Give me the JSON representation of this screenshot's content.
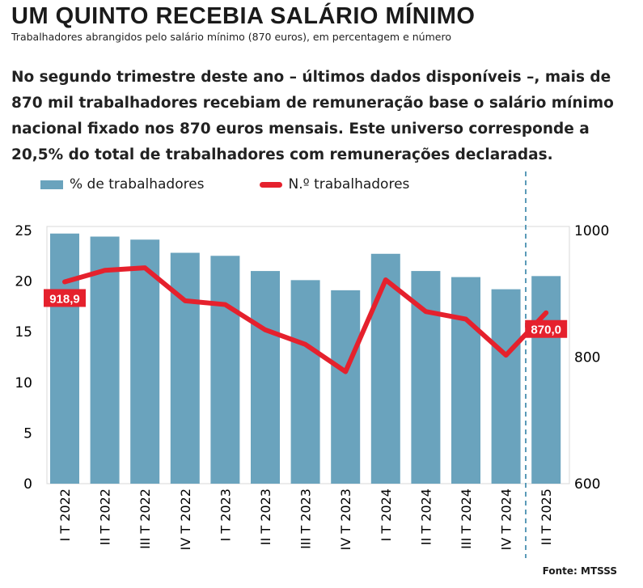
{
  "title": "UM QUINTO RECEBIA SALÁRIO MÍNIMO",
  "subtitle": "Trabalhadores abrangidos pelo salário mínimo (870 euros), em percentagem e número",
  "intro": "No segundo trimestre deste ano – últimos dados disponíveis –, mais de 870 mil trabalhadores recebiam de remuneração base o salário mínimo nacional fixado nos 870 euros mensais. Este universo corresponde a 20,5% do total de  trabalhadores com remunerações declaradas.",
  "source": "Fonte: MTSSS",
  "colors": {
    "bar": "#6aa3bd",
    "line": "#e5212d"
  },
  "chart_data": {
    "type": "bar+line",
    "categories": [
      "I T 2022",
      "II T 2022",
      "III T 2022",
      "IV T 2022",
      "I T 2023",
      "II T 2023",
      "III T 2023",
      "IV T 2023",
      "I T 2024",
      "II T 2024",
      "III T 2024",
      "IV T 2024",
      "II T 2025"
    ],
    "series": [
      {
        "name": "% de trabalhadores",
        "type": "bar",
        "axis": "left",
        "values": [
          24.7,
          24.4,
          24.1,
          22.8,
          22.5,
          21.0,
          20.1,
          19.1,
          22.7,
          21.0,
          20.4,
          19.2,
          20.5
        ]
      },
      {
        "name": "N.º trabalhadores",
        "type": "line",
        "axis": "right",
        "values": [
          918.9,
          937,
          941,
          889,
          883,
          843,
          820,
          777,
          922,
          872,
          860,
          803,
          870.0
        ]
      }
    ],
    "data_labels": [
      {
        "index": 0,
        "text": "918,9"
      },
      {
        "index": 12,
        "text": "870,0"
      }
    ],
    "left_axis": {
      "ylim": [
        0,
        25
      ],
      "ticks": [
        "0",
        "5",
        "10",
        "15",
        "20",
        "25"
      ]
    },
    "right_axis": {
      "ylim": [
        600,
        1000
      ],
      "ticks": [
        "600",
        "800",
        "1000"
      ]
    },
    "legend": "top-left",
    "grid": false
  }
}
